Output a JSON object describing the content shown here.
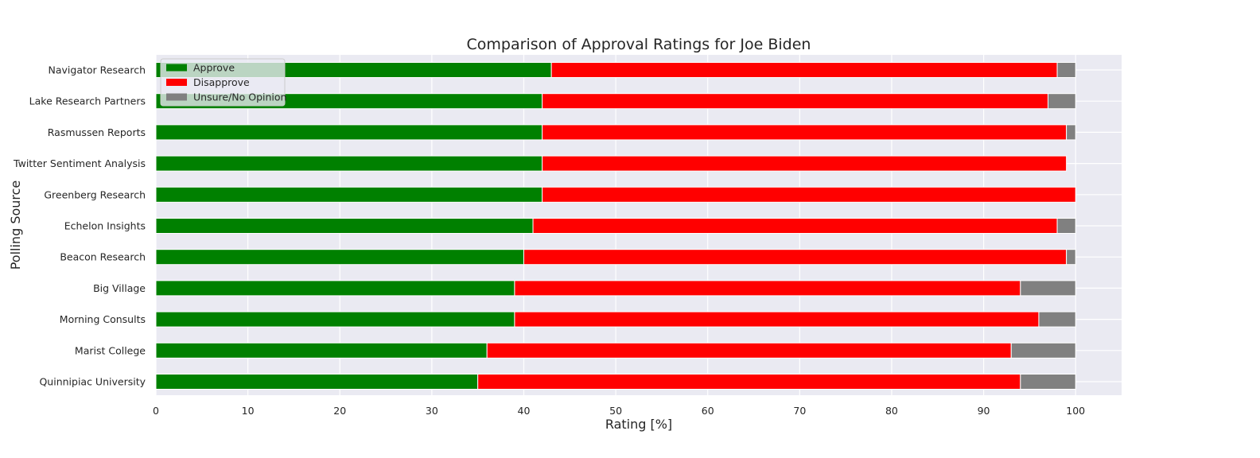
{
  "chart_data": {
    "type": "bar",
    "orientation": "horizontal",
    "stacked": true,
    "title": "Comparison of Approval Ratings for Joe Biden",
    "xlabel": "Rating [%]",
    "ylabel": "Polling Source",
    "xlim": [
      0,
      105
    ],
    "xticks": [
      0,
      10,
      20,
      30,
      40,
      50,
      60,
      70,
      80,
      90,
      100
    ],
    "grid": true,
    "legend_position": "upper-left",
    "categories": [
      "Navigator Research",
      "Lake Research Partners",
      "Rasmussen Reports",
      "Twitter Sentiment Analysis",
      "Greenberg Research",
      "Echelon Insights",
      "Beacon Research",
      "Big Village",
      "Morning Consults",
      "Marist College",
      "Quinnipiac University"
    ],
    "series": [
      {
        "name": "Approve",
        "color": "#008000",
        "values": [
          43,
          42,
          42,
          42,
          42,
          41,
          40,
          39,
          39,
          36,
          35
        ]
      },
      {
        "name": "Disapprove",
        "color": "#ff0000",
        "values": [
          55,
          55,
          57,
          57,
          58,
          57,
          59,
          55,
          57,
          57,
          59
        ]
      },
      {
        "name": "Unsure/No Opinion",
        "color": "#808080",
        "values": [
          2,
          3,
          1,
          0,
          0,
          2,
          1,
          6,
          4,
          7,
          6
        ]
      }
    ]
  }
}
